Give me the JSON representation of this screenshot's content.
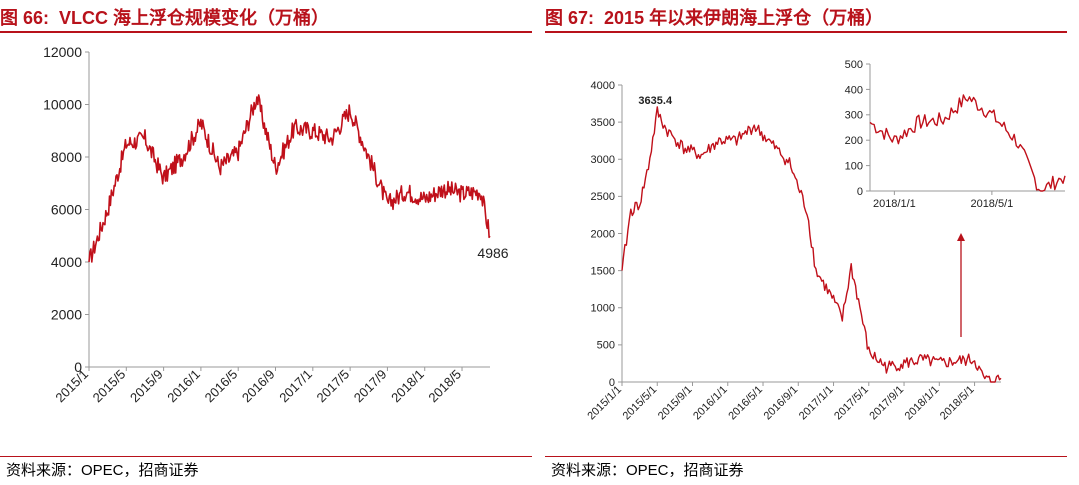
{
  "left": {
    "figure_no": "图 66:",
    "title": "VLCC 海上浮仓规模变化（万桶）",
    "source": "资料来源：OPEC，招商证券",
    "colors": {
      "line": "#c0101a",
      "title": "#b8121b"
    },
    "chart_data": {
      "type": "line",
      "x": [
        "2015/1",
        "2015/3",
        "2015/5",
        "2015/7",
        "2015/9",
        "2015/11",
        "2016/1",
        "2016/3",
        "2016/5",
        "2016/7",
        "2016/9",
        "2016/11",
        "2017/1",
        "2017/3",
        "2017/5",
        "2017/7",
        "2017/9",
        "2017/11",
        "2018/1",
        "2018/3",
        "2018/5",
        "2018/7",
        "2018/8"
      ],
      "values": [
        4000,
        6000,
        8500,
        8700,
        7200,
        8000,
        9300,
        7600,
        8200,
        10300,
        7600,
        9100,
        9000,
        8700,
        9800,
        8000,
        6200,
        6700,
        6400,
        6800,
        6600,
        6700,
        4986
      ],
      "title": "VLCC 海上浮仓规模变化（万桶）",
      "xlabel": "",
      "ylabel": "",
      "ylim": [
        0,
        12000
      ],
      "yticks": [
        "0",
        "2000",
        "4000",
        "6000",
        "8000",
        "10000",
        "12000"
      ],
      "xticks": [
        "2015/1",
        "2015/5",
        "2015/9",
        "2016/1",
        "2016/5",
        "2016/9",
        "2017/1",
        "2017/5",
        "2017/9",
        "2018/1",
        "2018/5"
      ],
      "annotation": "4986",
      "grid": false
    }
  },
  "right": {
    "figure_no": "图 67:",
    "title": "2015 年以来伊朗海上浮仓（万桶）",
    "source": "资料来源：OPEC，招商证券",
    "colors": {
      "line": "#c0101a",
      "arrow": "#b8121b"
    },
    "chart_data": [
      {
        "type": "line",
        "x": [
          "2015/1",
          "2015/2",
          "2015/3",
          "2015/4",
          "2015/5",
          "2015/6",
          "2015/8",
          "2015/10",
          "2015/12",
          "2016/2",
          "2016/4",
          "2016/6",
          "2016/8",
          "2016/10",
          "2016/11",
          "2017/1",
          "2017/2",
          "2017/3",
          "2017/4",
          "2017/5",
          "2017/6",
          "2017/7",
          "2017/9",
          "2017/11",
          "2018/1",
          "2018/3",
          "2018/5",
          "2018/6",
          "2018/7",
          "2018/8"
        ],
        "values": [
          1500,
          2300,
          2400,
          2900,
          3635.4,
          3400,
          3150,
          3050,
          3250,
          3250,
          3450,
          3200,
          2950,
          2300,
          1500,
          1100,
          850,
          1550,
          1000,
          400,
          300,
          200,
          250,
          300,
          250,
          280,
          300,
          50,
          0,
          50
        ],
        "title": "2015 年以来伊朗海上浮仓（万桶）",
        "ylim": [
          0,
          4000
        ],
        "yticks": [
          "0",
          "500",
          "1000",
          "1500",
          "2000",
          "2500",
          "3000",
          "3500",
          "4000"
        ],
        "xticks": [
          "2015/1/1",
          "2015/5/1",
          "2015/9/1",
          "2016/1/1",
          "2016/5/1",
          "2016/9/1",
          "2017/1/1",
          "2017/5/1",
          "2017/9/1",
          "2018/1/1",
          "2018/5/1"
        ],
        "annotation": "3635.4",
        "grid": false
      },
      {
        "type": "line",
        "x": [
          "2017/12",
          "2018/1",
          "2018/2",
          "2018/3",
          "2018/4",
          "2018/5",
          "2018/6",
          "2018/7",
          "2018/8"
        ],
        "values": [
          270,
          200,
          270,
          280,
          370,
          300,
          200,
          0,
          60
        ],
        "ylim": [
          0,
          500
        ],
        "yticks": [
          "0",
          "100",
          "200",
          "300",
          "400",
          "500"
        ],
        "xticks": [
          "2018/1/1",
          "2018/5/1"
        ],
        "grid": false
      }
    ]
  }
}
